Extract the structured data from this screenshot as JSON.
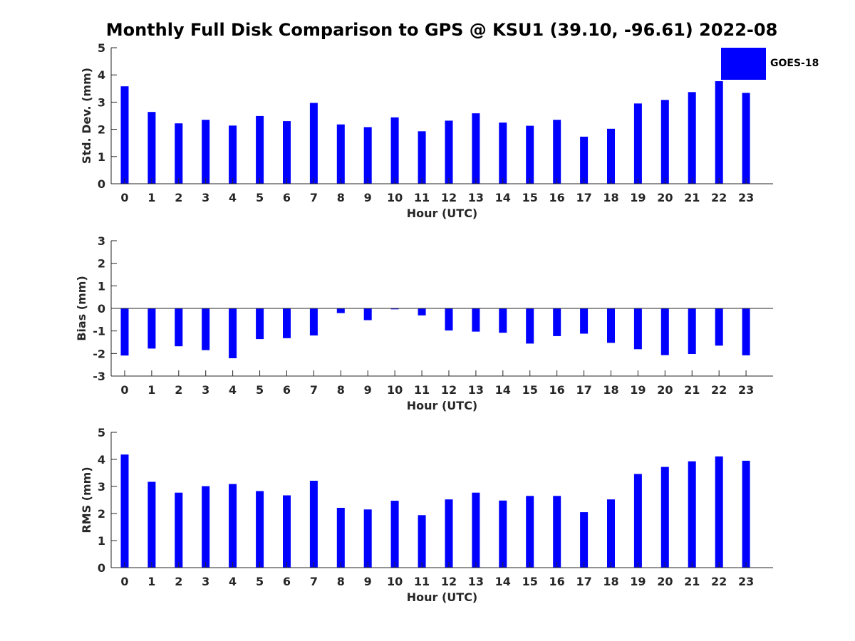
{
  "figure": {
    "title": "Monthly Full Disk Comparison to GPS @ KSU1 (39.10, -96.61) 2022-08",
    "legend": {
      "label": "GOES-18",
      "color": "#0000ff"
    }
  },
  "chart_data": [
    {
      "type": "bar",
      "title": "Monthly Full Disk Comparison to GPS @ KSU1 (39.10, -96.61) 2022-08",
      "xlabel": "Hour (UTC)",
      "ylabel": "Std. Dev. (mm)",
      "ylim": [
        0,
        5
      ],
      "yticks": [
        0,
        1,
        2,
        3,
        4,
        5
      ],
      "categories": [
        "0",
        "1",
        "2",
        "3",
        "4",
        "5",
        "6",
        "7",
        "8",
        "9",
        "10",
        "11",
        "12",
        "13",
        "14",
        "15",
        "16",
        "17",
        "18",
        "19",
        "20",
        "21",
        "22",
        "23"
      ],
      "series": [
        {
          "name": "GOES-18",
          "color": "#0000ff",
          "values": [
            3.58,
            2.64,
            2.22,
            2.35,
            2.14,
            2.49,
            2.3,
            2.97,
            2.18,
            2.08,
            2.44,
            1.93,
            2.32,
            2.59,
            2.25,
            2.13,
            2.35,
            1.73,
            2.02,
            2.95,
            3.08,
            3.37,
            3.77,
            3.34
          ]
        }
      ]
    },
    {
      "type": "bar",
      "xlabel": "Hour (UTC)",
      "ylabel": "Bias (mm)",
      "ylim": [
        -3,
        3
      ],
      "yticks": [
        -3,
        -2,
        -1,
        0,
        1,
        2,
        3
      ],
      "categories": [
        "0",
        "1",
        "2",
        "3",
        "4",
        "5",
        "6",
        "7",
        "8",
        "9",
        "10",
        "11",
        "12",
        "13",
        "14",
        "15",
        "16",
        "17",
        "18",
        "19",
        "20",
        "21",
        "22",
        "23"
      ],
      "series": [
        {
          "name": "GOES-18",
          "color": "#0000ff",
          "values": [
            -2.09,
            -1.78,
            -1.68,
            -1.85,
            -2.21,
            -1.36,
            -1.32,
            -1.2,
            -0.21,
            -0.52,
            -0.04,
            -0.31,
            -0.98,
            -1.03,
            -1.08,
            -1.56,
            -1.23,
            -1.12,
            -1.53,
            -1.81,
            -2.07,
            -2.02,
            -1.65,
            -2.08
          ]
        }
      ]
    },
    {
      "type": "bar",
      "xlabel": "Hour (UTC)",
      "ylabel": "RMS (mm)",
      "ylim": [
        0,
        5
      ],
      "yticks": [
        0,
        1,
        2,
        3,
        4,
        5
      ],
      "categories": [
        "0",
        "1",
        "2",
        "3",
        "4",
        "5",
        "6",
        "7",
        "8",
        "9",
        "10",
        "11",
        "12",
        "13",
        "14",
        "15",
        "16",
        "17",
        "18",
        "19",
        "20",
        "21",
        "22",
        "23"
      ],
      "series": [
        {
          "name": "GOES-18",
          "color": "#0000ff",
          "values": [
            4.18,
            3.17,
            2.77,
            3.01,
            3.09,
            2.83,
            2.67,
            3.21,
            2.21,
            2.15,
            2.47,
            1.94,
            2.52,
            2.77,
            2.48,
            2.65,
            2.65,
            2.05,
            2.52,
            3.46,
            3.72,
            3.93,
            4.11,
            3.95
          ]
        }
      ]
    }
  ]
}
